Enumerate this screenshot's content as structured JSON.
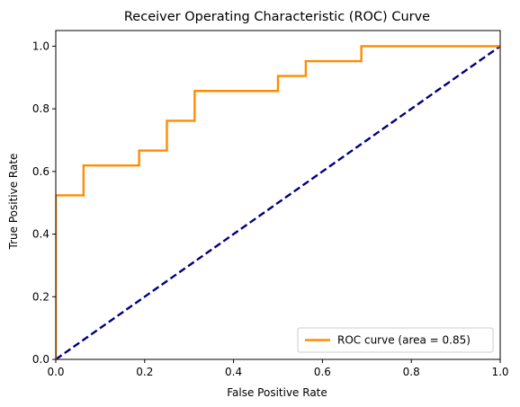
{
  "chart_data": {
    "type": "line",
    "title": "Receiver Operating Characteristic (ROC) Curve",
    "xlabel": "False Positive Rate",
    "ylabel": "True Positive Rate",
    "xlim": [
      0.0,
      1.0
    ],
    "ylim": [
      0.0,
      1.05
    ],
    "xticks": [
      0.0,
      0.2,
      0.4,
      0.6,
      0.8,
      1.0
    ],
    "yticks": [
      0.0,
      0.2,
      0.4,
      0.6,
      0.8,
      1.0
    ],
    "xtick_labels": [
      "0.0",
      "0.2",
      "0.4",
      "0.6",
      "0.8",
      "1.0"
    ],
    "ytick_labels": [
      "0.0",
      "0.2",
      "0.4",
      "0.6",
      "0.8",
      "1.0"
    ],
    "grid": false,
    "legend_position": "lower-right",
    "series": [
      {
        "name": "ROC curve (area = 0.85)",
        "color": "#ff8c00",
        "style": "solid",
        "x": [
          0.0,
          0.0,
          0.0,
          0.0625,
          0.0625,
          0.1875,
          0.1875,
          0.25,
          0.25,
          0.3125,
          0.3125,
          0.5,
          0.5,
          0.5625,
          0.5625,
          0.6875,
          0.6875,
          1.0
        ],
        "y": [
          0.0,
          0.0476,
          0.5238,
          0.5238,
          0.619,
          0.619,
          0.6667,
          0.6667,
          0.7619,
          0.7619,
          0.8571,
          0.8571,
          0.9048,
          0.9048,
          0.9524,
          0.9524,
          1.0,
          1.0
        ]
      },
      {
        "color": "#000080",
        "style": "dashed",
        "x": [
          0.0,
          1.0
        ],
        "y": [
          0.0,
          1.0
        ]
      }
    ]
  }
}
